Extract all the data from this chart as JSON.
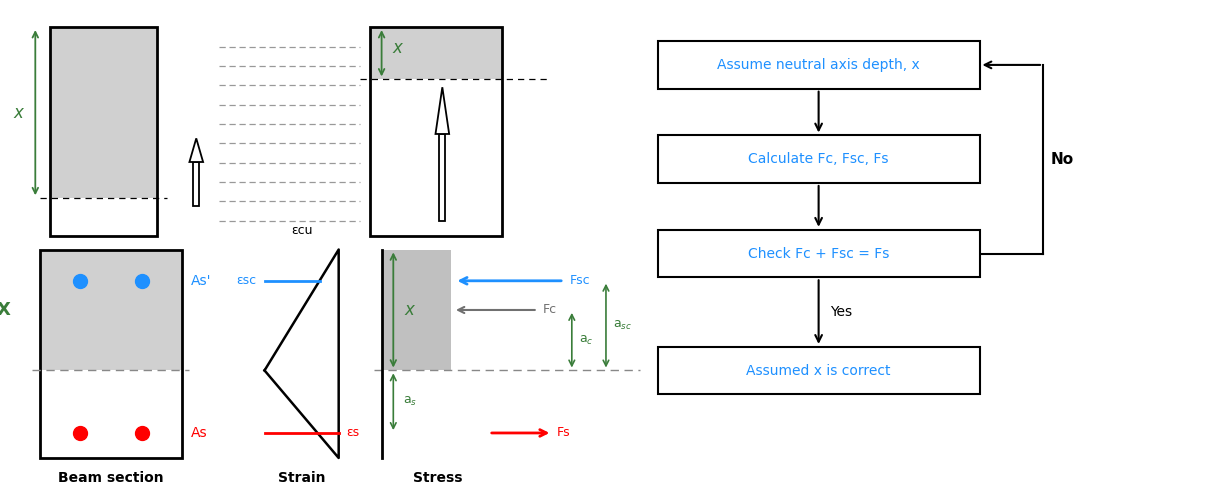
{
  "bg_color": "#ffffff",
  "green": "#3a7d3a",
  "blue": "#1E90FF",
  "red": "#FF0000",
  "gray_fill": "#C0C0C0",
  "light_gray": "#D0D0D0",
  "dark_gray": "#707070",
  "black": "#000000",
  "box_labels": [
    "Assume neutral axis depth, x",
    "Calculate Fc, Fsc, Fs",
    "Check Fc + Fsc = Fs",
    "Assumed x is correct"
  ],
  "yes_label": "Yes",
  "no_label": "No",
  "beam_section_label": "Beam section",
  "strain_label": "Strain",
  "stress_label": "Stress",
  "ecu_label": "εcu",
  "esc_label": "εsc",
  "es_label": "εs",
  "Fsc_label": "Fsc",
  "Fc_label": "Fc",
  "Fs_label": "Fs"
}
